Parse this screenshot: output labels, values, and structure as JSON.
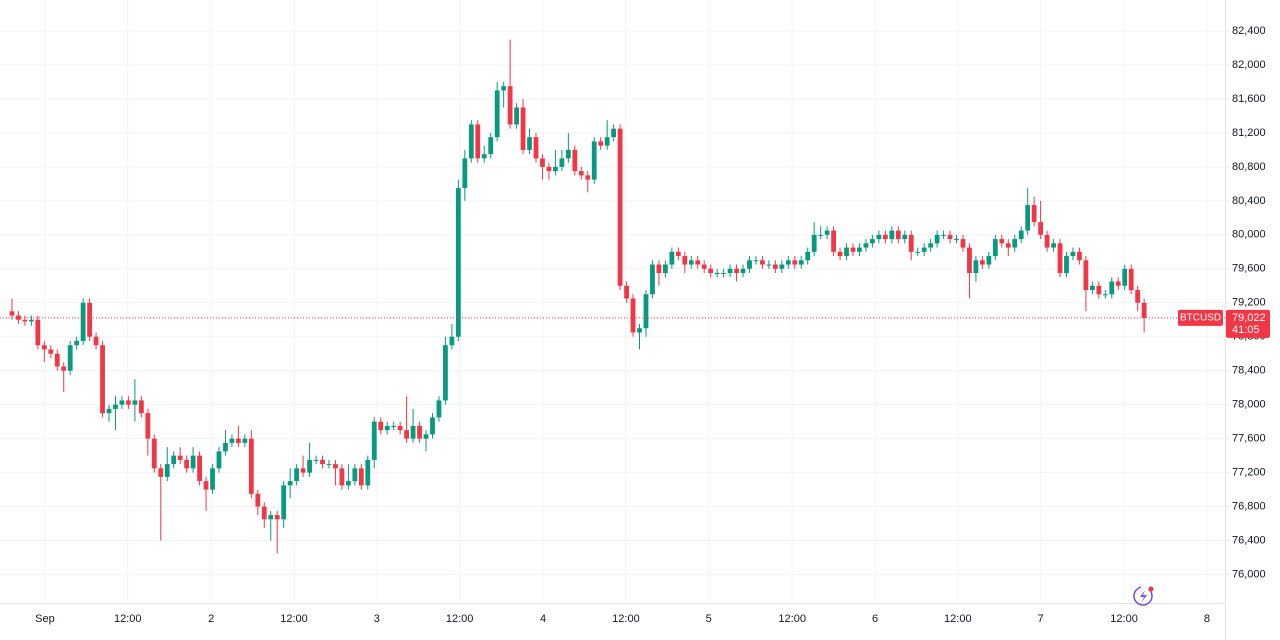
{
  "chart_data": {
    "type": "candlestick",
    "open": [
      79100,
      79050,
      79000,
      78980,
      79000,
      78700,
      78650,
      78600,
      78450,
      78400,
      78700,
      78750,
      79200,
      78800,
      78700,
      77900,
      77950,
      78000,
      78050,
      78000,
      78050,
      77900,
      77600,
      77250,
      77150,
      77300,
      77400,
      77350,
      77250,
      77400,
      77100,
      77000,
      77250,
      77450,
      77550,
      77600,
      77550,
      77600,
      76950,
      76800,
      76650,
      76700,
      76650,
      77050,
      77100,
      77250,
      77200,
      77350,
      77350,
      77300,
      77300,
      77250,
      77050,
      77100,
      77250,
      77050,
      77350,
      77800,
      77700,
      77750,
      77750,
      77700,
      77600,
      77750,
      77600,
      77650,
      77850,
      78050,
      78700,
      78800,
      80550,
      80900,
      81300,
      80900,
      80950,
      81150,
      81700,
      81750,
      81300,
      81500,
      81000,
      81150,
      80900,
      80800,
      80750,
      80800,
      80900,
      81000,
      80750,
      80700,
      80650,
      81100,
      81050,
      81150,
      81250,
      79400,
      79250,
      78850,
      78900,
      79300,
      79650,
      79550,
      79650,
      79800,
      79750,
      79650,
      79700,
      79650,
      79600,
      79550,
      79550,
      79550,
      79600,
      79550,
      79600,
      79700,
      79700,
      79650,
      79650,
      79600,
      79650,
      79700,
      79650,
      79700,
      79800,
      80000,
      80000,
      80050,
      79800,
      79750,
      79850,
      79800,
      79850,
      79900,
      79950,
      80000,
      79950,
      80050,
      79950,
      80000,
      79800,
      79800,
      79850,
      79900,
      80000,
      80000,
      79950,
      79950,
      79850,
      79550,
      79700,
      79650,
      79750,
      79950,
      79900,
      79850,
      79950,
      80050,
      80350,
      80150,
      80000,
      79850,
      79900,
      79550,
      79750,
      79800,
      79700,
      79350,
      79400,
      79300,
      79300,
      79450,
      79400,
      79600,
      79350,
      79200
    ],
    "high": [
      79250,
      79100,
      79050,
      79050,
      79050,
      78750,
      78700,
      78650,
      78500,
      78750,
      78800,
      79250,
      79250,
      78850,
      78750,
      78000,
      78100,
      78100,
      78100,
      78300,
      78100,
      77950,
      77650,
      77300,
      77500,
      77450,
      77500,
      77400,
      77500,
      77450,
      77150,
      77300,
      77500,
      77700,
      77650,
      77750,
      77650,
      77700,
      77000,
      76850,
      76750,
      76750,
      77100,
      77250,
      77300,
      77400,
      77550,
      77400,
      77400,
      77350,
      77350,
      77300,
      77300,
      77300,
      77300,
      77400,
      77850,
      77850,
      77800,
      77800,
      77800,
      78100,
      77950,
      77800,
      77700,
      77900,
      78100,
      78800,
      78950,
      80650,
      81000,
      81350,
      81350,
      81050,
      81200,
      81800,
      81800,
      82300,
      81550,
      81600,
      81250,
      81200,
      80950,
      80850,
      81000,
      81000,
      81200,
      81050,
      80800,
      80750,
      81150,
      81150,
      81350,
      81300,
      81300,
      79450,
      79300,
      78950,
      79350,
      79700,
      79700,
      79700,
      79850,
      79850,
      79800,
      79750,
      79750,
      79700,
      79650,
      79600,
      79600,
      79650,
      79650,
      79650,
      79750,
      79750,
      79750,
      79700,
      79700,
      79700,
      79750,
      79750,
      79750,
      79850,
      80150,
      80100,
      80100,
      80100,
      79850,
      79900,
      79900,
      79900,
      79950,
      80000,
      80050,
      80050,
      80100,
      80100,
      80050,
      80050,
      79850,
      79900,
      79950,
      80050,
      80050,
      80050,
      80000,
      80000,
      79900,
      79750,
      79750,
      79800,
      80000,
      80000,
      79950,
      80000,
      80100,
      80550,
      80450,
      80400,
      80050,
      79950,
      79950,
      79800,
      79850,
      79850,
      79750,
      79450,
      79450,
      79350,
      79500,
      79500,
      79650,
      79650,
      79400,
      79250
    ],
    "low": [
      79000,
      78950,
      78930,
      78930,
      78650,
      78500,
      78550,
      78400,
      78150,
      78350,
      78650,
      78700,
      78750,
      78650,
      77850,
      77800,
      77700,
      77950,
      77950,
      77800,
      77850,
      77400,
      77200,
      76400,
      77100,
      77250,
      77300,
      77200,
      77200,
      77050,
      76750,
      76950,
      77200,
      77400,
      77500,
      77500,
      77500,
      76900,
      76700,
      76550,
      76400,
      76250,
      76550,
      76900,
      77050,
      77150,
      77150,
      77300,
      77250,
      77250,
      77050,
      77000,
      77000,
      77050,
      77000,
      77000,
      77250,
      77650,
      77650,
      77700,
      77650,
      77550,
      77550,
      77550,
      77450,
      77600,
      77800,
      78000,
      78650,
      78750,
      80400,
      80850,
      80850,
      80850,
      80900,
      81100,
      81500,
      81250,
      81250,
      80950,
      80950,
      80850,
      80650,
      80650,
      80700,
      80750,
      80850,
      80700,
      80650,
      80500,
      80600,
      81000,
      81000,
      81100,
      79350,
      79200,
      78800,
      78650,
      78800,
      79250,
      79400,
      79500,
      79600,
      79700,
      79550,
      79600,
      79600,
      79550,
      79500,
      79500,
      79500,
      79500,
      79450,
      79500,
      79550,
      79650,
      79600,
      79600,
      79550,
      79550,
      79600,
      79600,
      79600,
      79650,
      79750,
      79950,
      79950,
      79750,
      79700,
      79700,
      79750,
      79750,
      79800,
      79850,
      79900,
      79900,
      79900,
      79900,
      79900,
      79700,
      79750,
      79750,
      79800,
      79850,
      79950,
      79900,
      79900,
      79800,
      79250,
      79450,
      79600,
      79600,
      79700,
      79850,
      79750,
      79800,
      79900,
      80000,
      80100,
      79950,
      79800,
      79800,
      79500,
      79500,
      79700,
      79650,
      79100,
      79300,
      79250,
      79250,
      79250,
      79350,
      79350,
      79300,
      79100,
      78850
    ],
    "close": [
      79050,
      79000,
      78980,
      79000,
      78700,
      78650,
      78600,
      78450,
      78400,
      78700,
      78750,
      79200,
      78800,
      78700,
      77900,
      77950,
      78000,
      78050,
      78000,
      78050,
      77900,
      77600,
      77250,
      77150,
      77300,
      77400,
      77350,
      77250,
      77400,
      77100,
      77000,
      77250,
      77450,
      77550,
      77600,
      77550,
      77600,
      76950,
      76800,
      76650,
      76700,
      76650,
      77050,
      77100,
      77250,
      77200,
      77350,
      77350,
      77300,
      77300,
      77250,
      77050,
      77100,
      77250,
      77050,
      77350,
      77800,
      77700,
      77750,
      77750,
      77700,
      77600,
      77750,
      77600,
      77650,
      77850,
      78050,
      78700,
      78800,
      80550,
      80900,
      81300,
      80900,
      80950,
      81150,
      81700,
      81750,
      81300,
      81500,
      81000,
      81150,
      80900,
      80800,
      80750,
      80800,
      80900,
      81000,
      80750,
      80700,
      80650,
      81100,
      81050,
      81150,
      81250,
      79400,
      79250,
      78850,
      78900,
      79300,
      79650,
      79550,
      79650,
      79800,
      79750,
      79650,
      79700,
      79650,
      79600,
      79550,
      79550,
      79550,
      79600,
      79550,
      79600,
      79700,
      79700,
      79650,
      79650,
      79600,
      79650,
      79700,
      79650,
      79700,
      79800,
      80000,
      80000,
      80050,
      79800,
      79750,
      79850,
      79800,
      79850,
      79900,
      79950,
      80000,
      79950,
      80050,
      79950,
      80000,
      79800,
      79800,
      79850,
      79900,
      80000,
      80000,
      79950,
      79950,
      79850,
      79550,
      79700,
      79650,
      79750,
      79950,
      79900,
      79850,
      79950,
      80050,
      80350,
      80150,
      80000,
      79850,
      79900,
      79550,
      79750,
      79800,
      79700,
      79350,
      79400,
      79300,
      79300,
      79450,
      79400,
      79600,
      79350,
      79200,
      79022
    ],
    "up_color": "#089981",
    "down_color": "#f23645",
    "xlim": [
      -1.85,
      187.5
    ],
    "xticks": [
      {
        "value": 5.1,
        "label": "Sep"
      },
      {
        "value": 17.9,
        "label": "12:00"
      },
      {
        "value": 30.8,
        "label": "2"
      },
      {
        "value": 43.6,
        "label": "12:00"
      },
      {
        "value": 56.4,
        "label": "3"
      },
      {
        "value": 69.2,
        "label": "12:00"
      },
      {
        "value": 82.1,
        "label": "4"
      },
      {
        "value": 94.9,
        "label": "12:00"
      },
      {
        "value": 107.7,
        "label": "5"
      },
      {
        "value": 120.6,
        "label": "12:00"
      },
      {
        "value": 133.4,
        "label": "6"
      },
      {
        "value": 146.2,
        "label": "12:00"
      },
      {
        "value": 159.0,
        "label": "7"
      },
      {
        "value": 171.9,
        "label": "12:00"
      },
      {
        "value": 184.7,
        "label": "8"
      }
    ],
    "ylim": [
      75700,
      82765
    ],
    "yticks": [
      {
        "value": 76000,
        "label": "76,000"
      },
      {
        "value": 76400,
        "label": "76,400"
      },
      {
        "value": 76800,
        "label": "76,800"
      },
      {
        "value": 77200,
        "label": "77,200"
      },
      {
        "value": 77600,
        "label": "77,600"
      },
      {
        "value": 78000,
        "label": "78,000"
      },
      {
        "value": 78400,
        "label": "78,400"
      },
      {
        "value": 78800,
        "label": "78,800"
      },
      {
        "value": 79200,
        "label": "79,200"
      },
      {
        "value": 79600,
        "label": "79,600"
      },
      {
        "value": 80000,
        "label": "80,000"
      },
      {
        "value": 80400,
        "label": "80,400"
      },
      {
        "value": 80800,
        "label": "80,800"
      },
      {
        "value": 81200,
        "label": "81,200"
      },
      {
        "value": 81600,
        "label": "81,600"
      },
      {
        "value": 82000,
        "label": "82,000"
      },
      {
        "value": 82400,
        "label": "82,400"
      }
    ],
    "grid": true,
    "last_price": {
      "symbol": "BTCUSD",
      "value": 79022,
      "label": "79,022",
      "countdown": "41:05"
    }
  }
}
